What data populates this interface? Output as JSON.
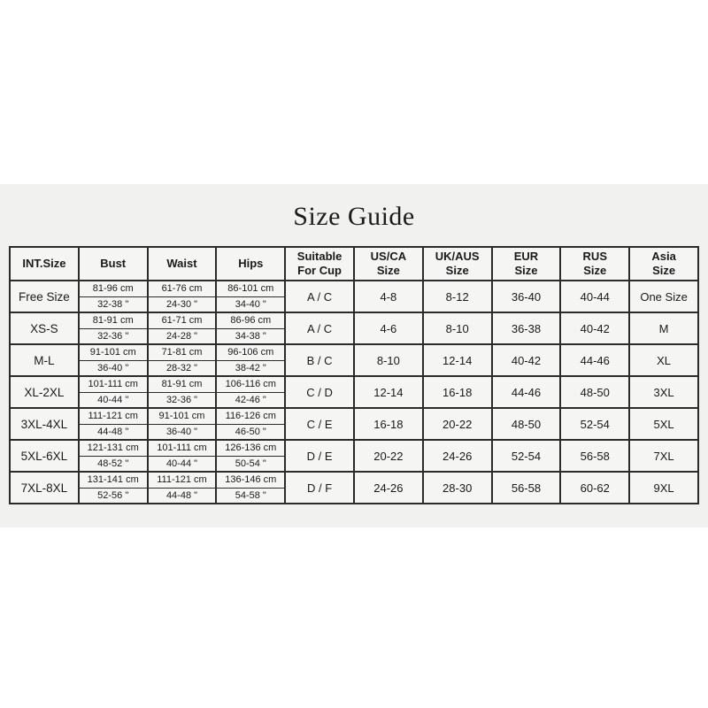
{
  "title": "Size Guide",
  "table": {
    "headers": [
      "INT.Size",
      "Bust",
      "Waist",
      "Hips",
      "Suitable\nFor Cup",
      "US/CA\nSize",
      "UK/AUS\nSize",
      "EUR\nSize",
      "RUS\nSize",
      "Asia\nSize"
    ],
    "rows": [
      {
        "int_size": "Free Size",
        "bust_cm": "81-96 cm",
        "bust_in": "32-38 \"",
        "waist_cm": "61-76 cm",
        "waist_in": "24-30 \"",
        "hips_cm": "86-101 cm",
        "hips_in": "34-40 \"",
        "cup": "A / C",
        "us_ca": "4-8",
        "uk_aus": "8-12",
        "eur": "36-40",
        "rus": "40-44",
        "asia": "One Size"
      },
      {
        "int_size": "XS-S",
        "bust_cm": "81-91 cm",
        "bust_in": "32-36 \"",
        "waist_cm": "61-71 cm",
        "waist_in": "24-28 \"",
        "hips_cm": "86-96 cm",
        "hips_in": "34-38 \"",
        "cup": "A / C",
        "us_ca": "4-6",
        "uk_aus": "8-10",
        "eur": "36-38",
        "rus": "40-42",
        "asia": "M"
      },
      {
        "int_size": "M-L",
        "bust_cm": "91-101 cm",
        "bust_in": "36-40 \"",
        "waist_cm": "71-81 cm",
        "waist_in": "28-32 \"",
        "hips_cm": "96-106 cm",
        "hips_in": "38-42 \"",
        "cup": "B / C",
        "us_ca": "8-10",
        "uk_aus": "12-14",
        "eur": "40-42",
        "rus": "44-46",
        "asia": "XL"
      },
      {
        "int_size": "XL-2XL",
        "bust_cm": "101-111 cm",
        "bust_in": "40-44 \"",
        "waist_cm": "81-91 cm",
        "waist_in": "32-36 \"",
        "hips_cm": "106-116 cm",
        "hips_in": "42-46 \"",
        "cup": "C / D",
        "us_ca": "12-14",
        "uk_aus": "16-18",
        "eur": "44-46",
        "rus": "48-50",
        "asia": "3XL"
      },
      {
        "int_size": "3XL-4XL",
        "bust_cm": "111-121 cm",
        "bust_in": "44-48 \"",
        "waist_cm": "91-101 cm",
        "waist_in": "36-40 \"",
        "hips_cm": "116-126 cm",
        "hips_in": "46-50 \"",
        "cup": "C / E",
        "us_ca": "16-18",
        "uk_aus": "20-22",
        "eur": "48-50",
        "rus": "52-54",
        "asia": "5XL"
      },
      {
        "int_size": "5XL-6XL",
        "bust_cm": "121-131 cm",
        "bust_in": "48-52 \"",
        "waist_cm": "101-111 cm",
        "waist_in": "40-44 \"",
        "hips_cm": "126-136 cm",
        "hips_in": "50-54 \"",
        "cup": "D / E",
        "us_ca": "20-22",
        "uk_aus": "24-26",
        "eur": "52-54",
        "rus": "56-58",
        "asia": "7XL"
      },
      {
        "int_size": "7XL-8XL",
        "bust_cm": "131-141 cm",
        "bust_in": "52-56 \"",
        "waist_cm": "111-121 cm",
        "waist_in": "44-48 \"",
        "hips_cm": "136-146 cm",
        "hips_in": "54-58 \"",
        "cup": "D / F",
        "us_ca": "24-26",
        "uk_aus": "28-30",
        "eur": "56-58",
        "rus": "60-62",
        "asia": "9XL"
      }
    ]
  }
}
